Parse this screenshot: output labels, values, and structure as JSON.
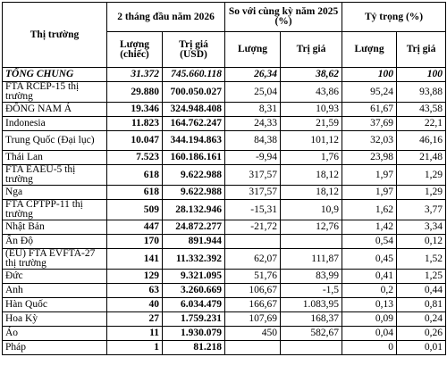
{
  "headers": {
    "market": "Thị trường",
    "period": "2 tháng đầu năm 2026",
    "compare": "So với cùng kỳ năm 2025 (%)",
    "share": "Tỷ trọng (%)",
    "qty": "Lượng (chiếc)",
    "value": "Trị giá (USD)",
    "qty2": "Lượng",
    "value2": "Trị giá",
    "qty3": "Lượng",
    "value3": "Trị giá"
  },
  "total": {
    "name": "TỔNG CHUNG",
    "qty": "31.372",
    "value": "745.660.118",
    "qty_pct": "26,34",
    "value_pct": "38,62",
    "qty_share": "100",
    "value_share": "100"
  },
  "rows": [
    {
      "name": "FTA RCEP-15 thị trường",
      "qty": "29.880",
      "value": "700.050.027",
      "qty_pct": "25,04",
      "value_pct": "43,86",
      "qty_share": "95,24",
      "value_share": "93,88"
    },
    {
      "name": "ĐÔNG NAM Á",
      "qty": "19.346",
      "value": "324.948.408",
      "qty_pct": "8,31",
      "value_pct": "10,93",
      "qty_share": "61,67",
      "value_share": "43,58"
    },
    {
      "name": "Indonesia",
      "qty": "11.823",
      "value": "164.762.247",
      "qty_pct": "24,33",
      "value_pct": "21,59",
      "qty_share": "37,69",
      "value_share": "22,1"
    },
    {
      "name": "Trung Quốc (Đại lục)",
      "qty": "10.047",
      "value": "344.194.863",
      "qty_pct": "84,38",
      "value_pct": "101,12",
      "qty_share": "32,03",
      "value_share": "46,16"
    },
    {
      "name": "Thái Lan",
      "qty": "7.523",
      "value": "160.186.161",
      "qty_pct": "-9,94",
      "value_pct": "1,76",
      "qty_share": "23,98",
      "value_share": "21,48"
    },
    {
      "name": "FTA EAEU-5 thị trường",
      "qty": "618",
      "value": "9.622.988",
      "qty_pct": "317,57",
      "value_pct": "18,12",
      "qty_share": "1,97",
      "value_share": "1,29"
    },
    {
      "name": "Nga",
      "qty": "618",
      "value": "9.622.988",
      "qty_pct": "317,57",
      "value_pct": "18,12",
      "qty_share": "1,97",
      "value_share": "1,29"
    },
    {
      "name": "FTA CPTPP-11 thị trường",
      "qty": "509",
      "value": "28.132.946",
      "qty_pct": "-15,31",
      "value_pct": "10,9",
      "qty_share": "1,62",
      "value_share": "3,77"
    },
    {
      "name": "Nhật Bản",
      "qty": "447",
      "value": "24.872.277",
      "qty_pct": "-21,72",
      "value_pct": "12,76",
      "qty_share": "1,42",
      "value_share": "3,34"
    },
    {
      "name": "Ấn Độ",
      "qty": "170",
      "value": "891.944",
      "qty_pct": "",
      "value_pct": "",
      "qty_share": "0,54",
      "value_share": "0,12"
    },
    {
      "name": "(EU) FTA EVFTA-27 thị trường",
      "qty": "141",
      "value": "11.332.392",
      "qty_pct": "62,07",
      "value_pct": "111,87",
      "qty_share": "0,45",
      "value_share": "1,52"
    },
    {
      "name": "Đức",
      "qty": "129",
      "value": "9.321.095",
      "qty_pct": "51,76",
      "value_pct": "83,99",
      "qty_share": "0,41",
      "value_share": "1,25"
    },
    {
      "name": "Anh",
      "qty": "63",
      "value": "3.260.669",
      "qty_pct": "106,67",
      "value_pct": "-1,5",
      "qty_share": "0,2",
      "value_share": "0,44"
    },
    {
      "name": "Hàn Quốc",
      "qty": "40",
      "value": "6.034.479",
      "qty_pct": "166,67",
      "value_pct": "1.083,95",
      "qty_share": "0,13",
      "value_share": "0,81"
    },
    {
      "name": "Hoa Kỳ",
      "qty": "27",
      "value": "1.759.231",
      "qty_pct": "107,69",
      "value_pct": "168,37",
      "qty_share": "0,09",
      "value_share": "0,24"
    },
    {
      "name": "Áo",
      "qty": "11",
      "value": "1.930.079",
      "qty_pct": "450",
      "value_pct": "582,67",
      "qty_share": "0,04",
      "value_share": "0,26"
    },
    {
      "name": "Pháp",
      "qty": "1",
      "value": "81.218",
      "qty_pct": "",
      "value_pct": "",
      "qty_share": "0",
      "value_share": "0,01"
    }
  ]
}
